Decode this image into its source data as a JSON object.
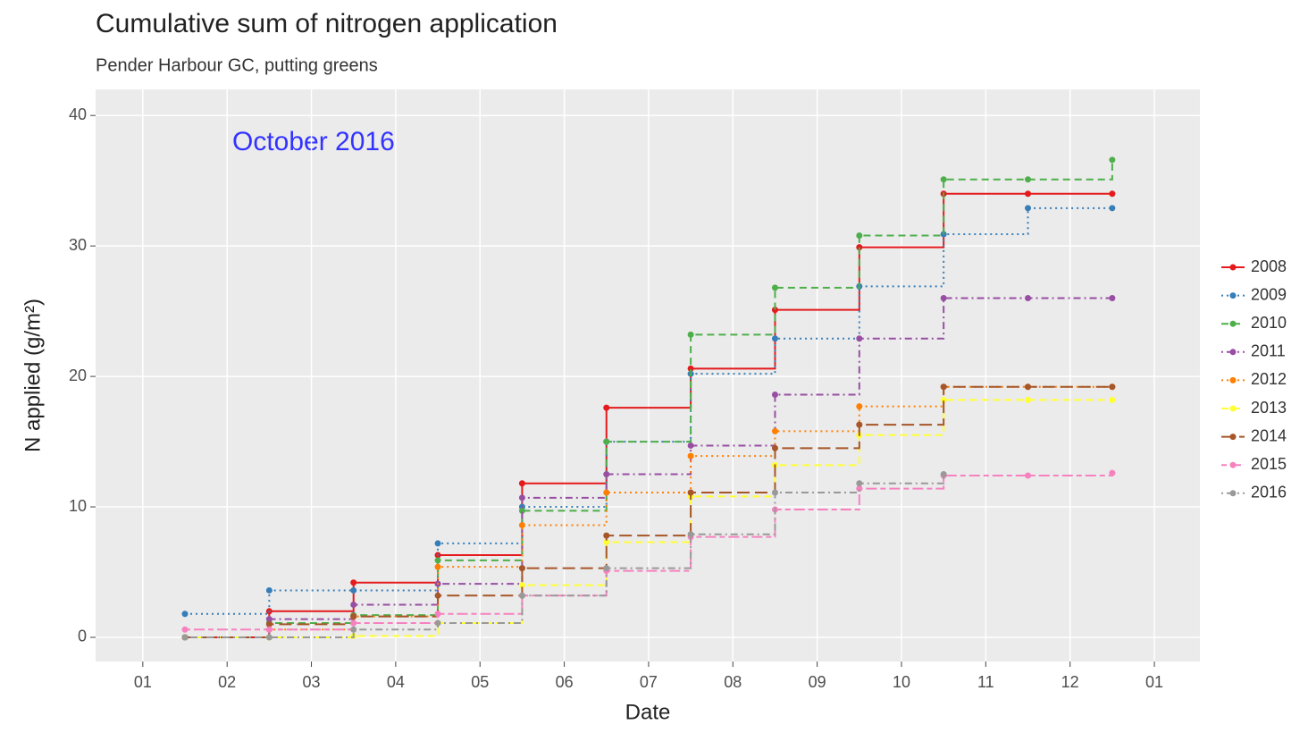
{
  "chart_data": {
    "type": "step",
    "title": "Cumulative sum of nitrogen application",
    "subtitle": "Pender Harbour GC, putting greens",
    "annotation": {
      "text": "October 2016",
      "color": "#3333ff"
    },
    "xlabel": "Date",
    "ylabel": "N applied (g/m²)",
    "x": [
      1.5,
      2.5,
      3.5,
      4.5,
      5.5,
      6.5,
      7.5,
      8.5,
      9.5,
      10.5,
      11.5,
      12.5
    ],
    "xlim": [
      0.44,
      13.54
    ],
    "xticks": [
      {
        "value": 1,
        "label": "01"
      },
      {
        "value": 2,
        "label": "02"
      },
      {
        "value": 3,
        "label": "03"
      },
      {
        "value": 4,
        "label": "04"
      },
      {
        "value": 5,
        "label": "05"
      },
      {
        "value": 6,
        "label": "06"
      },
      {
        "value": 7,
        "label": "07"
      },
      {
        "value": 8,
        "label": "08"
      },
      {
        "value": 9,
        "label": "09"
      },
      10,
      11,
      12,
      {
        "value": 13,
        "label": "01"
      }
    ],
    "ylim": [
      -1.85,
      42
    ],
    "yticks": [
      0,
      10,
      20,
      30,
      40
    ],
    "grid": true,
    "legend": "right",
    "series": [
      {
        "name": "2008",
        "color": "#e41a1c",
        "linestyle": "solid",
        "values": [
          0,
          2.0,
          4.2,
          6.3,
          11.8,
          17.6,
          20.6,
          25.1,
          29.9,
          34.0,
          34.0,
          34.0
        ]
      },
      {
        "name": "2009",
        "color": "#377eb8",
        "linestyle": "dotted",
        "values": [
          1.8,
          3.6,
          3.6,
          7.2,
          10.0,
          15.0,
          20.2,
          22.9,
          26.9,
          30.9,
          32.9,
          32.9
        ]
      },
      {
        "name": "2010",
        "color": "#4daf4a",
        "linestyle": "dashed",
        "values": [
          0,
          1.1,
          1.7,
          5.9,
          9.7,
          15.0,
          23.2,
          26.8,
          30.8,
          35.1,
          35.1,
          36.6
        ]
      },
      {
        "name": "2011",
        "color": "#984ea3",
        "linestyle": "dotdash",
        "values": [
          0,
          1.4,
          2.5,
          4.1,
          10.7,
          12.5,
          14.7,
          18.6,
          22.9,
          26.0,
          26.0,
          26.0
        ]
      },
      {
        "name": "2012",
        "color": "#ff7f00",
        "linestyle": "dotted",
        "values": [
          0,
          0.6,
          1.6,
          5.4,
          8.6,
          11.1,
          13.9,
          15.8,
          17.7,
          19.2,
          19.2,
          19.2
        ]
      },
      {
        "name": "2013",
        "color": "#ffff33",
        "linestyle": "dashed",
        "values": [
          0,
          0,
          0.1,
          1.1,
          4.0,
          7.3,
          10.8,
          13.2,
          15.5,
          18.2,
          18.2,
          18.2
        ]
      },
      {
        "name": "2014",
        "color": "#a65628",
        "linestyle": "longdash",
        "values": [
          0,
          1.0,
          1.6,
          3.2,
          5.3,
          7.8,
          11.1,
          14.5,
          16.3,
          19.2,
          19.2,
          19.2
        ]
      },
      {
        "name": "2015",
        "color": "#f781bf",
        "linestyle": "twodash",
        "values": [
          0.6,
          0.6,
          1.1,
          1.8,
          3.2,
          5.1,
          7.7,
          9.8,
          11.4,
          12.4,
          12.4,
          12.6
        ]
      },
      {
        "name": "2016",
        "color": "#999999",
        "linestyle": "dotdash",
        "values": [
          0,
          0,
          0.6,
          1.1,
          3.2,
          5.3,
          7.9,
          11.1,
          11.8,
          12.5,
          null,
          null
        ]
      }
    ]
  }
}
